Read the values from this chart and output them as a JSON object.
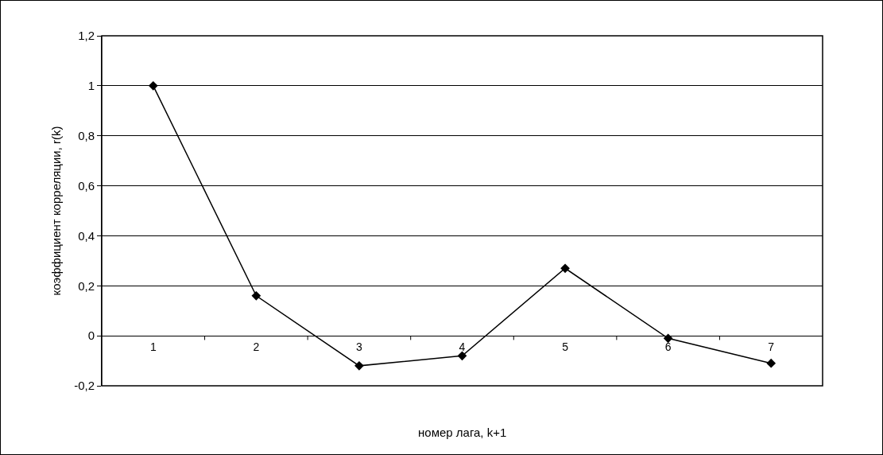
{
  "chart_data": {
    "type": "line",
    "xlabel": "номер лага, k+1",
    "ylabel": "коэффициент корреляции, r(k)",
    "categories": [
      "1",
      "2",
      "3",
      "4",
      "5",
      "6",
      "7"
    ],
    "series": [
      {
        "color": "#000000",
        "values": [
          1.0,
          0.16,
          -0.12,
          -0.08,
          0.27,
          -0.01,
          -0.11
        ]
      }
    ],
    "ylim": [
      -0.2,
      1.2
    ],
    "yticks": [
      {
        "value": -0.2,
        "label": "-0,2"
      },
      0,
      {
        "value": 0.2,
        "label": "0,2"
      },
      {
        "value": 0.4,
        "label": "0,4"
      },
      {
        "value": 0.6,
        "label": "0,6"
      },
      {
        "value": 0.8,
        "label": "0,8"
      },
      1,
      {
        "value": 1.2,
        "label": "1,2"
      }
    ],
    "grid": "y",
    "marker": "diamond",
    "line_style": "solid"
  }
}
